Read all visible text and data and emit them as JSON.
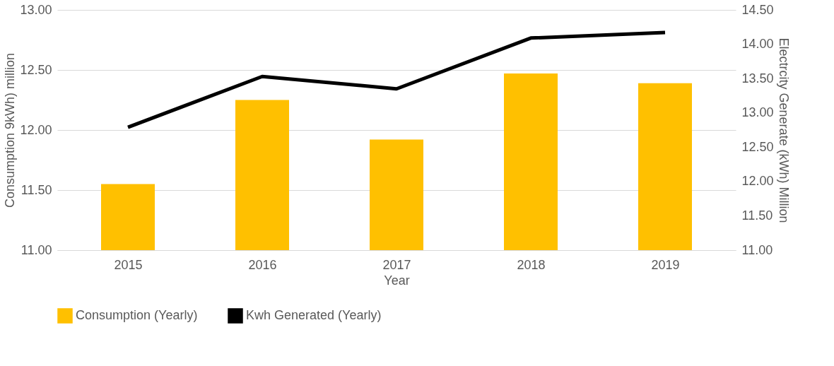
{
  "chart_data": {
    "type": "bar",
    "xlabel": "Year",
    "ylabel": "Consumption 9kWh) million",
    "y2label": "Electrcity Generate (kWh) Million",
    "categories": [
      "2015",
      "2016",
      "2017",
      "2018",
      "2019"
    ],
    "series": [
      {
        "name": "Consumption (Yearly)",
        "color": "#ffc000",
        "values": [
          11.55,
          12.25,
          11.92,
          12.47,
          12.39
        ]
      },
      {
        "name": "Kwh Generated (Yearly)",
        "type": "line",
        "axis": "y2",
        "color": "#000000",
        "values": [
          12.79,
          13.53,
          13.35,
          14.09,
          14.17
        ]
      }
    ],
    "ylim": [
      11.0,
      13.0
    ],
    "yticks": [
      {
        "value": 11,
        "label": "11.00"
      },
      {
        "value": 11.5,
        "label": "11.50"
      },
      {
        "value": 12,
        "label": "12.00"
      },
      {
        "value": 12.5,
        "label": "12.50"
      },
      {
        "value": 13,
        "label": "13.00"
      }
    ],
    "y2lim": [
      11.0,
      14.5
    ],
    "y2ticks": [
      {
        "value": 11,
        "label": "11.00"
      },
      {
        "value": 11.5,
        "label": "11.50"
      },
      {
        "value": 12,
        "label": "12.00"
      },
      {
        "value": 12.5,
        "label": "12.50"
      },
      {
        "value": 13,
        "label": "13.00"
      },
      {
        "value": 13.5,
        "label": "13.50"
      },
      {
        "value": 14,
        "label": "14.00"
      },
      {
        "value": 14.5,
        "label": "14.50"
      }
    ],
    "grid": "y",
    "legend": "bottom",
    "marker": "none",
    "line_style": "solid"
  }
}
